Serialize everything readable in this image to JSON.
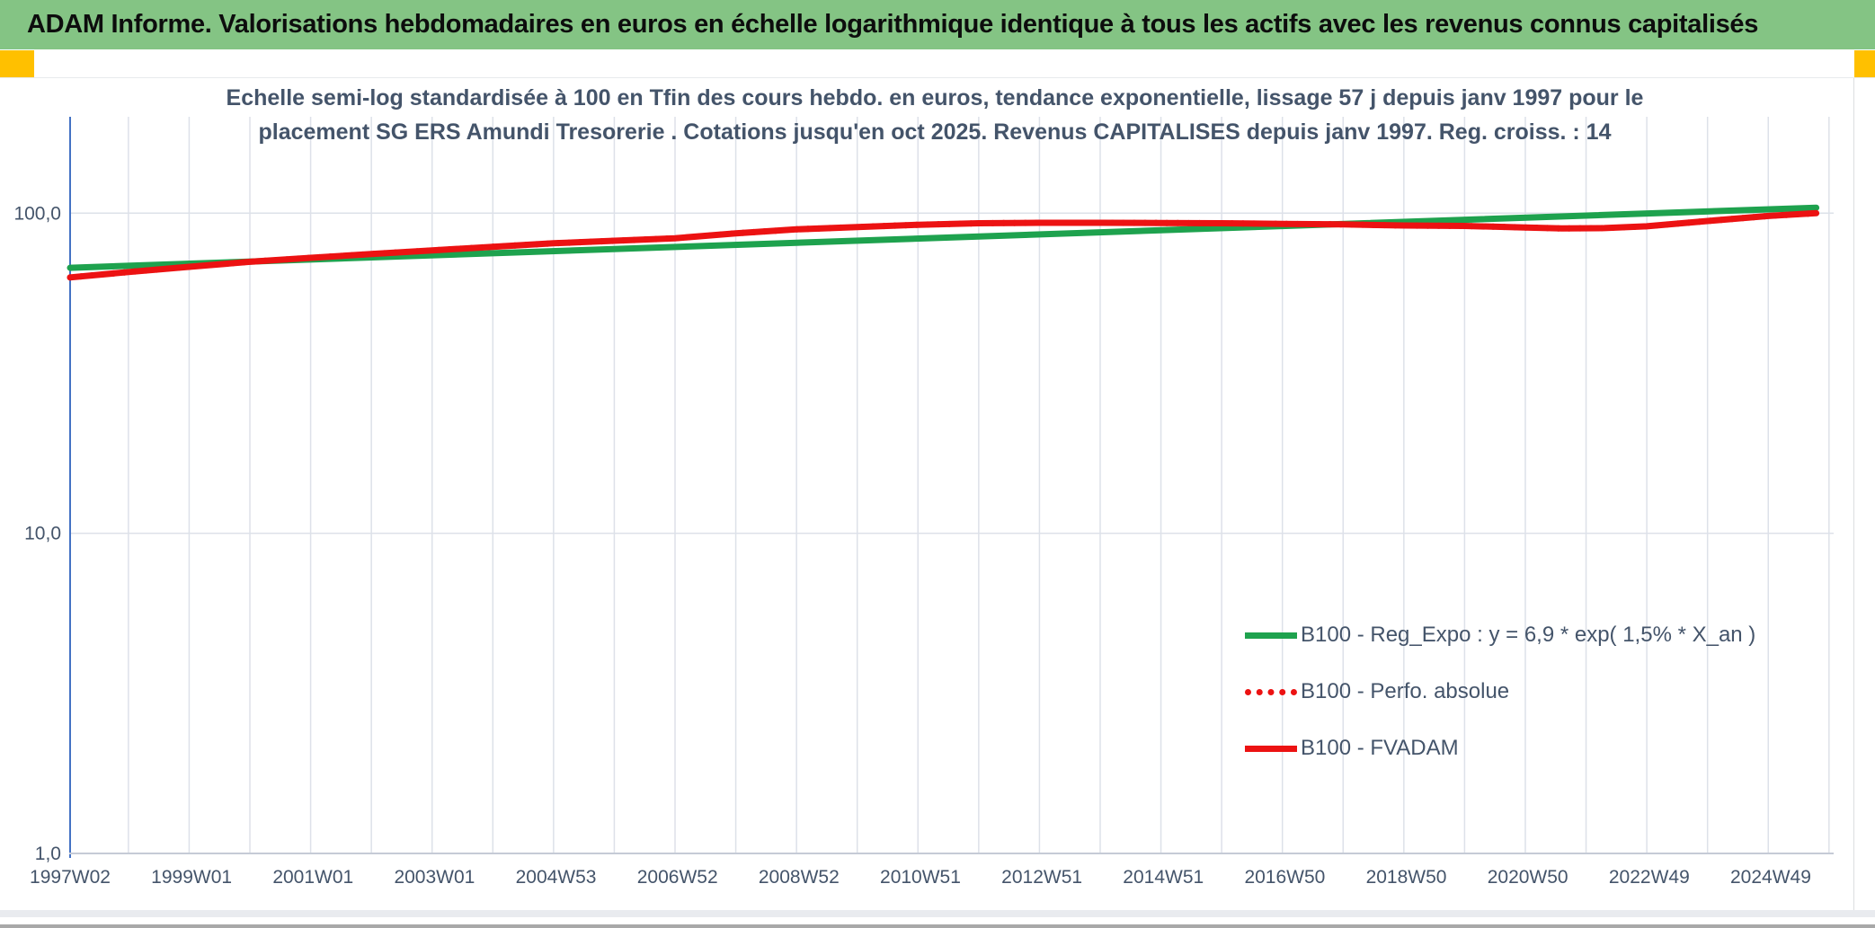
{
  "header": {
    "title": "ADAM Informe. Valorisations hebdomadaires en euros en échelle logarithmique identique à tous les actifs avec les revenus connus capitalisés",
    "bg_color": "#84C484",
    "corner_color": "#FFC000"
  },
  "chart_data": {
    "type": "line",
    "title_lines": [
      "Echelle semi-log standardisée à 100 en Tfin des cours hebdo. en euros, tendance exponentielle, lissage 57 j depuis janv 1997 pour le",
      "placement SG ERS Amundi Tresorerie . Cotations jusqu'en oct 2025. Revenus CAPITALISES depuis janv 1997. Reg. croiss. : 14"
    ],
    "title_color": "#44546A",
    "y_scale": "log",
    "ylim": [
      1,
      200
    ],
    "x_start_year": 1997.04,
    "x_end_year": 2025.79,
    "grid_on": true,
    "y_ticks": [
      {
        "value": 100,
        "label": "100,0"
      },
      {
        "value": 10,
        "label": "10,0"
      },
      {
        "value": 1,
        "label": "1,0"
      }
    ],
    "x_tick_labels": [
      "1997W02",
      "1999W01",
      "2001W01",
      "2003W01",
      "2004W53",
      "2006W52",
      "2008W52",
      "2010W51",
      "2012W51",
      "2014W51",
      "2016W50",
      "2018W50",
      "2020W50",
      "2022W49",
      "2024W49"
    ],
    "x_tick_interval_years": 2,
    "axis_color": "#4472C4",
    "grid_color": "#dde1e9",
    "tick_label_color": "#44546A",
    "legend_position": "lower-right",
    "series": [
      {
        "name": "B100 - Reg_Expo : y = 6,9 * exp( 1,5% * X_an )",
        "color": "#1EA24E",
        "style": "solid",
        "points": [
          [
            1997.04,
            67.5
          ],
          [
            2025.79,
            104
          ]
        ]
      },
      {
        "name": "B100 - Perfo. absolue",
        "color": "#EC1212",
        "style": "dotted",
        "points": [
          [
            1997.04,
            63
          ],
          [
            1998,
            65.5
          ],
          [
            1999,
            68
          ],
          [
            2000,
            70.5
          ],
          [
            2001,
            72.5
          ],
          [
            2002,
            74.5
          ],
          [
            2003,
            76.5
          ],
          [
            2004,
            78.5
          ],
          [
            2005,
            80.5
          ],
          [
            2006,
            82
          ],
          [
            2007,
            83.5
          ],
          [
            2008,
            86.5
          ],
          [
            2009,
            89
          ],
          [
            2010,
            90.5
          ],
          [
            2011,
            92
          ],
          [
            2012,
            93
          ],
          [
            2013,
            93.3
          ],
          [
            2014,
            93.3
          ],
          [
            2015,
            93.2
          ],
          [
            2016,
            93
          ],
          [
            2017,
            92.6
          ],
          [
            2018,
            92.2
          ],
          [
            2019,
            91.5
          ],
          [
            2020,
            91.2
          ],
          [
            2021,
            90.2
          ],
          [
            2021.6,
            89.6
          ],
          [
            2022.3,
            89.8
          ],
          [
            2023,
            91
          ],
          [
            2024,
            94.5
          ],
          [
            2025,
            98
          ],
          [
            2025.79,
            100
          ]
        ]
      },
      {
        "name": "B100 - FVADAM",
        "color": "#EC1212",
        "style": "solid",
        "points": [
          [
            1997.04,
            63
          ],
          [
            1998,
            65.5
          ],
          [
            1999,
            68
          ],
          [
            2000,
            70.5
          ],
          [
            2001,
            72.5
          ],
          [
            2002,
            74.5
          ],
          [
            2003,
            76.5
          ],
          [
            2004,
            78.5
          ],
          [
            2005,
            80.5
          ],
          [
            2006,
            82
          ],
          [
            2007,
            83.5
          ],
          [
            2008,
            86.5
          ],
          [
            2009,
            89
          ],
          [
            2010,
            90.5
          ],
          [
            2011,
            92
          ],
          [
            2012,
            93
          ],
          [
            2013,
            93.3
          ],
          [
            2014,
            93.3
          ],
          [
            2015,
            93.2
          ],
          [
            2016,
            93
          ],
          [
            2017,
            92.6
          ],
          [
            2018,
            92.2
          ],
          [
            2019,
            91.5
          ],
          [
            2020,
            91.2
          ],
          [
            2021,
            90.2
          ],
          [
            2021.6,
            89.6
          ],
          [
            2022.3,
            89.8
          ],
          [
            2023,
            91
          ],
          [
            2024,
            94.5
          ],
          [
            2025,
            98
          ],
          [
            2025.79,
            100
          ]
        ]
      }
    ]
  }
}
